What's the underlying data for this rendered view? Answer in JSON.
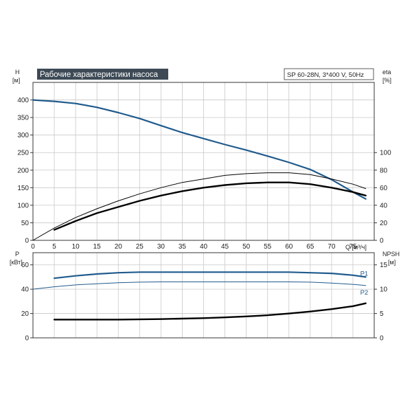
{
  "chart_data": [
    {
      "type": "line",
      "title": "Рабочие характеристики насоса",
      "subtitle": "SP 60-28N, 3*400 V, 50Hz",
      "ylabel_left": "H",
      "ylabel_left_unit": "[м]",
      "ylabel_right": "eta",
      "ylabel_right_unit": "[%]",
      "xlabel": "Q [м³/ч]",
      "x_ticks": [
        "0",
        "5",
        "10",
        "15",
        "20",
        "25",
        "30",
        "35",
        "40",
        "45",
        "50",
        "55",
        "60",
        "65",
        "70",
        "75"
      ],
      "y_left_ticks": [
        "0",
        "50",
        "100",
        "150",
        "200",
        "250",
        "300",
        "350",
        "400"
      ],
      "y_right_ticks": [
        "0",
        "20",
        "40",
        "60",
        "80",
        "100"
      ],
      "xlim": [
        0,
        80
      ],
      "ylim_left": [
        0,
        450
      ],
      "ylim_right": [
        0,
        180
      ],
      "grid": true,
      "colors": {
        "head": "#1f5a8c",
        "eta": "#000000"
      },
      "series": [
        {
          "axis": "left",
          "color": "#1f5a8c",
          "width": 2.2,
          "x": [
            0,
            5,
            10,
            15,
            20,
            25,
            30,
            35,
            40,
            45,
            50,
            55,
            60,
            65,
            70,
            75,
            78
          ],
          "y": [
            400,
            396,
            390,
            379,
            364,
            347,
            327,
            307,
            290,
            273,
            257,
            240,
            222,
            202,
            173,
            138,
            118
          ]
        },
        {
          "axis": "right",
          "color": "#000000",
          "width": 2.4,
          "x": [
            5,
            10,
            15,
            20,
            25,
            30,
            35,
            40,
            45,
            50,
            55,
            60,
            65,
            70,
            75,
            78
          ],
          "y": [
            12,
            22,
            31,
            38,
            45,
            51,
            56,
            60,
            63,
            65,
            66,
            66,
            64,
            60,
            55,
            51
          ]
        },
        {
          "axis": "right",
          "color": "#000000",
          "width": 1,
          "x": [
            0,
            5,
            10,
            15,
            20,
            25,
            30,
            35,
            40,
            45,
            50,
            55,
            60,
            65,
            70,
            75,
            78
          ],
          "y": [
            0,
            14,
            26,
            36,
            45,
            53,
            60,
            66,
            70,
            74,
            76,
            77,
            77,
            75,
            70,
            64,
            59
          ]
        }
      ]
    },
    {
      "type": "line",
      "ylabel_left": "P",
      "ylabel_left_unit": "[кВт]",
      "ylabel_right": "NPSH",
      "ylabel_right_unit": "[м]",
      "x_ticks": [
        "0",
        "5",
        "10",
        "15",
        "20",
        "25",
        "30",
        "35",
        "40",
        "45",
        "50",
        "55",
        "60",
        "65",
        "70",
        "75"
      ],
      "y_left_ticks": [
        "0",
        "20",
        "40",
        "60"
      ],
      "y_right_ticks": [
        "0",
        "5",
        "10",
        "15"
      ],
      "xlim": [
        0,
        80
      ],
      "ylim_left": [
        0,
        70
      ],
      "ylim_right": [
        0,
        17.5
      ],
      "grid": true,
      "series": [
        {
          "name": "P1",
          "axis": "left",
          "color": "#1f5a8c",
          "width": 2.2,
          "x": [
            5,
            10,
            15,
            20,
            25,
            30,
            35,
            40,
            45,
            50,
            55,
            60,
            65,
            70,
            75,
            78
          ],
          "y": [
            49,
            51,
            52.5,
            53.5,
            54,
            54,
            54,
            54,
            54,
            54,
            54,
            54,
            53.5,
            53,
            51.5,
            50
          ]
        },
        {
          "name": "P2",
          "axis": "left",
          "color": "#1f5a8c",
          "width": 1,
          "x": [
            0,
            5,
            10,
            15,
            20,
            25,
            30,
            35,
            40,
            45,
            50,
            55,
            60,
            65,
            70,
            75,
            78
          ],
          "y": [
            40,
            42,
            43.5,
            44.5,
            45.3,
            45.8,
            46,
            46,
            46,
            46,
            46,
            46,
            46,
            45.8,
            45,
            44,
            43
          ]
        },
        {
          "axis": "right",
          "color": "#000000",
          "width": 2.4,
          "x": [
            5,
            10,
            15,
            20,
            25,
            30,
            35,
            40,
            45,
            50,
            55,
            60,
            65,
            70,
            75,
            78
          ],
          "y": [
            3.75,
            3.75,
            3.75,
            3.75,
            3.8,
            3.85,
            3.95,
            4.05,
            4.2,
            4.4,
            4.65,
            5,
            5.4,
            5.9,
            6.5,
            7.1
          ]
        }
      ]
    }
  ]
}
